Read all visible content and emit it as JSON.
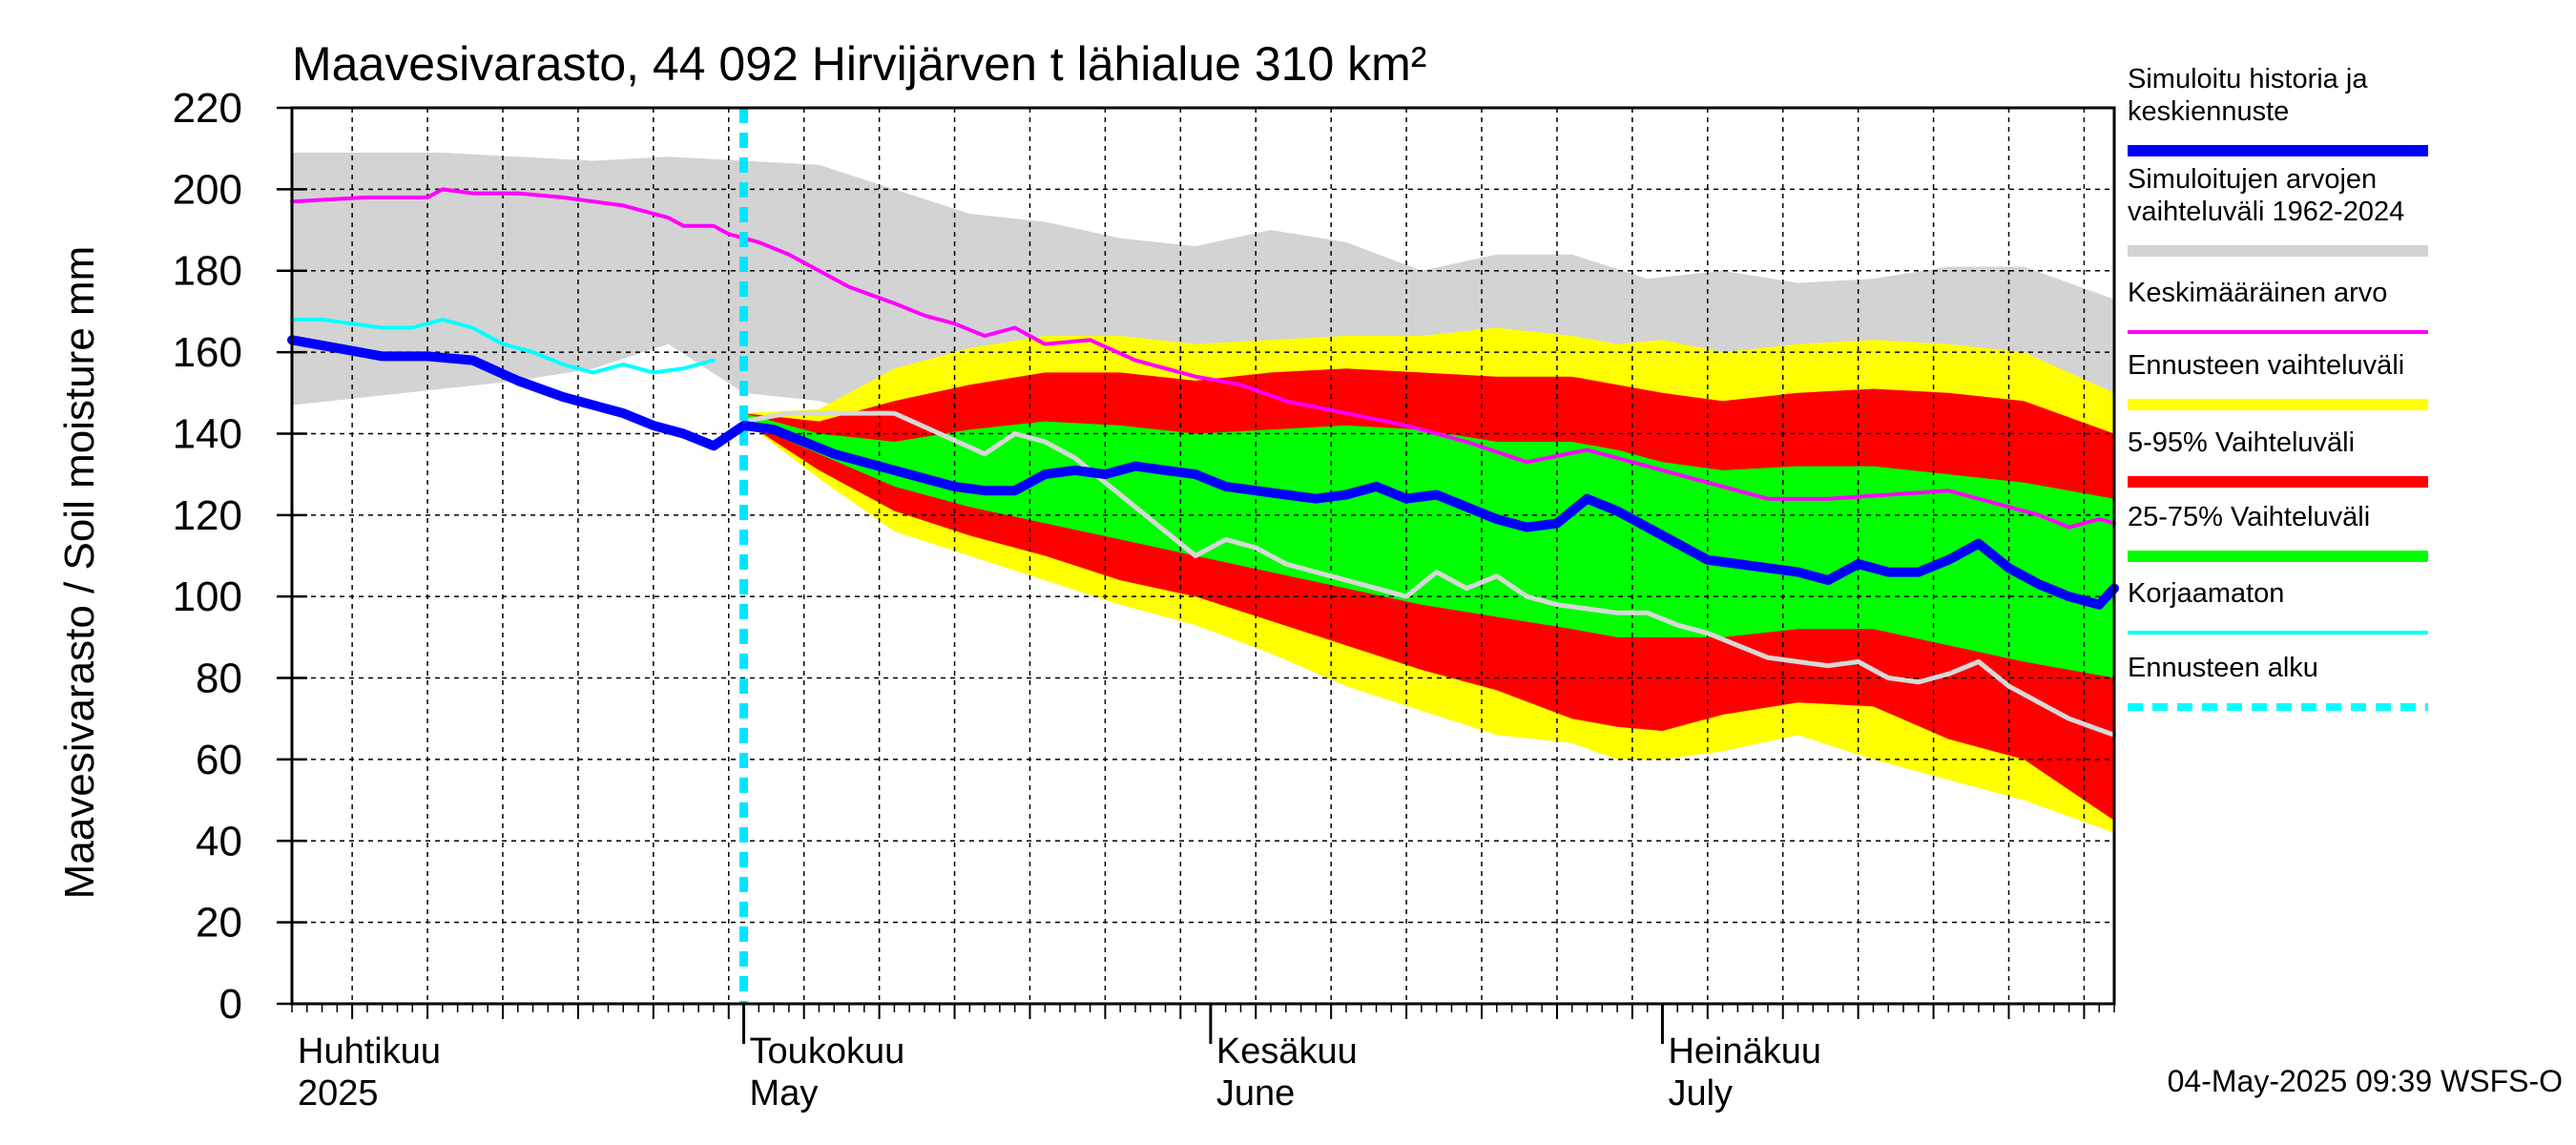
{
  "chart_data": {
    "type": "area",
    "title": "Maavesivarasto, 44 092 Hirvijärven t lähialue 310 km²",
    "ylabel": "Maavesivarasto / Soil moisture   mm",
    "ylim": [
      0,
      220
    ],
    "yticks": [
      0,
      20,
      40,
      60,
      80,
      100,
      120,
      140,
      160,
      180,
      200,
      220
    ],
    "grid": true,
    "x_start_day": 0,
    "x_end_day": 121,
    "forecast_start_day": 30,
    "months": [
      {
        "name_fi": "Huhtikuu",
        "name_en": "2025",
        "day": 0
      },
      {
        "name_fi": "Toukokuu",
        "name_en": "May",
        "day": 30
      },
      {
        "name_fi": "Kesäkuu",
        "name_en": "June",
        "day": 61
      },
      {
        "name_fi": "Heinäkuu",
        "name_en": "July",
        "day": 91
      }
    ],
    "series": [
      {
        "name": "Simuloitujen arvojen vaihteluväli 1962-2024",
        "kind": "band",
        "color": "#d3d3d3",
        "x": [
          0,
          10,
          15,
          20,
          25,
          30,
          35,
          40,
          45,
          50,
          55,
          60,
          65,
          70,
          75,
          80,
          85,
          90,
          95,
          100,
          105,
          110,
          115,
          121
        ],
        "low": [
          147,
          151,
          153,
          156,
          162,
          150,
          148,
          143,
          145,
          148,
          150,
          152,
          152,
          150,
          150,
          149,
          150,
          150,
          149,
          149,
          150,
          149,
          149,
          148
        ],
        "high": [
          209,
          209,
          208,
          207,
          208,
          207,
          206,
          200,
          194,
          192,
          188,
          186,
          190,
          187,
          180,
          184,
          184,
          178,
          180,
          177,
          178,
          181,
          181,
          173
        ]
      },
      {
        "name": "Ennusteen vaihteluväli",
        "kind": "band",
        "color": "#ffff00",
        "x": [
          30,
          35,
          40,
          45,
          50,
          55,
          60,
          65,
          70,
          75,
          80,
          85,
          88,
          91,
          95,
          100,
          105,
          110,
          115,
          121
        ],
        "low": [
          143,
          129,
          116,
          110,
          104,
          98,
          93,
          86,
          78,
          72,
          66,
          64,
          60,
          60,
          62,
          66,
          60,
          55,
          50,
          42
        ],
        "high": [
          145,
          146,
          156,
          161,
          164,
          164,
          162,
          163,
          164,
          164,
          166,
          164,
          162,
          163,
          160,
          162,
          163,
          162,
          160,
          150
        ]
      },
      {
        "name": "5-95% Vaihteluväli",
        "kind": "band",
        "color": "#ff0000",
        "x": [
          30,
          35,
          40,
          45,
          50,
          55,
          60,
          65,
          70,
          75,
          80,
          85,
          88,
          91,
          95,
          100,
          105,
          110,
          115,
          121
        ],
        "low": [
          143,
          131,
          121,
          115,
          110,
          104,
          100,
          94,
          88,
          82,
          77,
          70,
          68,
          67,
          71,
          74,
          73,
          65,
          60,
          45
        ],
        "high": [
          145,
          143,
          148,
          152,
          155,
          155,
          153,
          155,
          156,
          155,
          154,
          154,
          152,
          150,
          148,
          150,
          151,
          150,
          148,
          140
        ]
      },
      {
        "name": "25-75% Vaihteluväli",
        "kind": "band",
        "color": "#00ff00",
        "x": [
          30,
          35,
          40,
          45,
          50,
          55,
          60,
          65,
          70,
          75,
          80,
          85,
          88,
          91,
          95,
          100,
          105,
          110,
          115,
          121
        ],
        "low": [
          143,
          135,
          127,
          122,
          118,
          114,
          110,
          106,
          102,
          98,
          95,
          92,
          90,
          90,
          90,
          92,
          92,
          88,
          84,
          80
        ],
        "high": [
          145,
          140,
          138,
          141,
          143,
          142,
          140,
          141,
          142,
          141,
          138,
          138,
          136,
          133,
          131,
          132,
          132,
          130,
          128,
          124
        ]
      },
      {
        "name": "Korjaamaton",
        "kind": "line",
        "color": "#00ffff",
        "width": 4,
        "x": [
          0,
          2,
          4,
          6,
          8,
          10,
          12,
          14,
          16,
          18,
          20,
          22,
          24,
          26,
          28
        ],
        "y": [
          168,
          168,
          167,
          166,
          166,
          168,
          166,
          162,
          160,
          157,
          155,
          157,
          155,
          156,
          158
        ]
      },
      {
        "name": "Keskimääräinen arvo",
        "kind": "line",
        "color": "#ff00ff",
        "width": 4,
        "x": [
          0,
          5,
          9,
          10,
          12,
          15,
          18,
          20,
          22,
          25,
          26,
          28,
          29,
          31,
          33,
          35,
          37,
          40,
          42,
          44,
          46,
          48,
          50,
          53,
          56,
          60,
          63,
          66,
          70,
          74,
          78,
          82,
          86,
          90,
          94,
          98,
          102,
          106,
          110,
          113,
          116,
          118,
          120,
          121
        ],
        "y": [
          197,
          198,
          198,
          200,
          199,
          199,
          198,
          197,
          196,
          193,
          191,
          191,
          189,
          187,
          184,
          180,
          176,
          172,
          169,
          167,
          164,
          166,
          162,
          163,
          158,
          154,
          152,
          148,
          145,
          142,
          138,
          133,
          136,
          132,
          128,
          124,
          124,
          125,
          126,
          123,
          120,
          117,
          119,
          118
        ]
      },
      {
        "name": "Simuloitu historia ja keskiennuste",
        "kind": "line",
        "color": "#0000ff",
        "width": 10,
        "x": [
          0,
          3,
          6,
          9,
          12,
          15,
          18,
          20,
          22,
          24,
          26,
          28,
          30,
          32,
          34,
          36,
          38,
          40,
          42,
          44,
          46,
          48,
          50,
          52,
          54,
          56,
          58,
          60,
          62,
          64,
          66,
          68,
          70,
          72,
          74,
          76,
          78,
          80,
          82,
          84,
          86,
          88,
          90,
          92,
          94,
          96,
          98,
          100,
          102,
          104,
          106,
          108,
          110,
          112,
          114,
          116,
          118,
          120,
          121
        ],
        "y": [
          163,
          161,
          159,
          159,
          158,
          153,
          149,
          147,
          145,
          142,
          140,
          137,
          142,
          141,
          138,
          135,
          133,
          131,
          129,
          127,
          126,
          126,
          130,
          131,
          130,
          132,
          131,
          130,
          127,
          126,
          125,
          124,
          125,
          127,
          124,
          125,
          122,
          119,
          117,
          118,
          124,
          121,
          117,
          113,
          109,
          108,
          107,
          106,
          104,
          108,
          106,
          106,
          109,
          113,
          107,
          103,
          100,
          98,
          102
        ]
      },
      {
        "name": "white line",
        "kind": "line",
        "color": "#d8d8d8",
        "width": 5,
        "nolegend": true,
        "x": [
          30,
          33,
          36,
          40,
          43,
          46,
          48,
          50,
          52,
          54,
          56,
          58,
          60,
          62,
          64,
          66,
          68,
          70,
          72,
          74,
          76,
          78,
          80,
          82,
          84,
          86,
          88,
          90,
          92,
          94,
          96,
          98,
          100,
          102,
          104,
          106,
          108,
          110,
          112,
          114,
          116,
          118,
          121
        ],
        "y": [
          143,
          145,
          145,
          145,
          140,
          135,
          140,
          138,
          134,
          128,
          122,
          116,
          110,
          114,
          112,
          108,
          106,
          104,
          102,
          100,
          106,
          102,
          105,
          100,
          98,
          97,
          96,
          96,
          93,
          91,
          88,
          85,
          84,
          83,
          84,
          80,
          79,
          81,
          84,
          78,
          74,
          70,
          66
        ]
      }
    ]
  },
  "legend": [
    {
      "label": "Simuloitu historia ja keskiennuste",
      "color": "#0000ff",
      "style": "thick"
    },
    {
      "label": "Simuloitujen arvojen vaihteluväli 1962-2024",
      "color": "#d3d3d3",
      "style": "thick"
    },
    {
      "label": "Keskimääräinen arvo",
      "color": "#ff00ff",
      "style": "thin"
    },
    {
      "label": "Ennusteen vaihteluväli",
      "color": "#ffff00",
      "style": "thick"
    },
    {
      "label": "5-95% Vaihteluväli",
      "color": "#ff0000",
      "style": "thick"
    },
    {
      "label": "25-75% Vaihteluväli",
      "color": "#00ff00",
      "style": "thick"
    },
    {
      "label": "Korjaamaton",
      "color": "#00ffff",
      "style": "thin"
    },
    {
      "label": "Ennusteen alku",
      "color": "#00ffff",
      "style": "dashed"
    }
  ],
  "timestamp": "04-May-2025 09:39 WSFS-O"
}
